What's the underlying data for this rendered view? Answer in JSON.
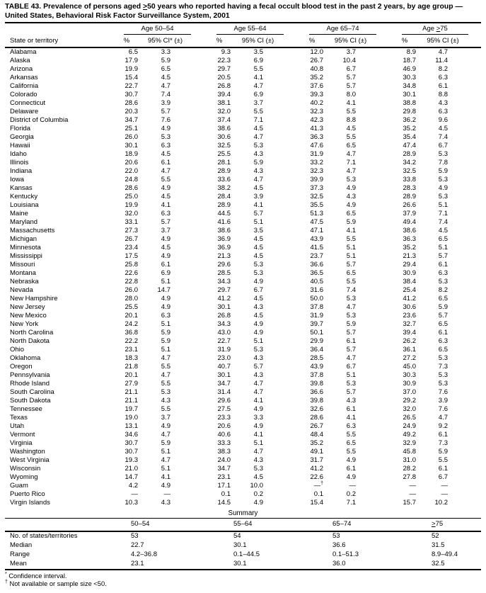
{
  "title": {
    "line1": "TABLE 43. Prevalence of persons aged ≥50 years who reported having a fecal occult blood test in the past 2 years, by age group —",
    "line2": "United States, Behavioral Risk Factor Surveillance System, 2001"
  },
  "table": {
    "state_col_header": "State or territory",
    "groups": [
      {
        "label": "Age 50–54",
        "pct": "%",
        "ci": "95% CI* (±)"
      },
      {
        "label": "Age 55–64",
        "pct": "%",
        "ci": "95% CI (±)"
      },
      {
        "label": "Age 65–74",
        "pct": "%",
        "ci": "95% CI (±)"
      },
      {
        "label": "Age ≥75",
        "pct": "%",
        "ci": "95% CI (±)"
      }
    ],
    "rows": [
      {
        "state": "Alabama",
        "values": [
          "6.5",
          "3.3",
          "9.3",
          "3.5",
          "12.0",
          "3.7",
          "8.9",
          "4.7"
        ]
      },
      {
        "state": "Alaska",
        "values": [
          "17.9",
          "5.9",
          "22.3",
          "6.9",
          "26.7",
          "10.4",
          "18.7",
          "11.4"
        ]
      },
      {
        "state": "Arizona",
        "values": [
          "19.9",
          "6.5",
          "29.7",
          "5.5",
          "40.8",
          "6.7",
          "46.9",
          "8.2"
        ]
      },
      {
        "state": "Arkansas",
        "values": [
          "15.4",
          "4.5",
          "20.5",
          "4.1",
          "35.2",
          "5.7",
          "30.3",
          "6.3"
        ]
      },
      {
        "state": "California",
        "values": [
          "22.7",
          "4.7",
          "26.8",
          "4.7",
          "37.6",
          "5.7",
          "34.8",
          "6.1"
        ]
      },
      {
        "state": "Colorado",
        "values": [
          "30.7",
          "7.4",
          "39.4",
          "6.9",
          "39.3",
          "8.0",
          "30.1",
          "8.8"
        ]
      },
      {
        "state": "Connecticut",
        "values": [
          "28.6",
          "3.9",
          "38.1",
          "3.7",
          "40.2",
          "4.1",
          "38.8",
          "4.3"
        ]
      },
      {
        "state": "Delaware",
        "values": [
          "20.3",
          "5.7",
          "32.0",
          "5.5",
          "32.3",
          "5.5",
          "29.8",
          "6.3"
        ]
      },
      {
        "state": "District of Columbia",
        "values": [
          "34.7",
          "7.6",
          "37.4",
          "7.1",
          "42.3",
          "8.8",
          "36.2",
          "9.6"
        ]
      },
      {
        "state": "Florida",
        "values": [
          "25.1",
          "4.9",
          "38.6",
          "4.5",
          "41.3",
          "4.5",
          "35.2",
          "4.5"
        ]
      },
      {
        "state": "Georgia",
        "values": [
          "26.0",
          "5.3",
          "30.6",
          "4.7",
          "36.3",
          "5.5",
          "35.4",
          "7.4"
        ]
      },
      {
        "state": "Hawaii",
        "values": [
          "30.1",
          "6.3",
          "32.5",
          "5.3",
          "47.6",
          "6.5",
          "47.4",
          "6.7"
        ]
      },
      {
        "state": "Idaho",
        "values": [
          "18.9",
          "4.5",
          "25.5",
          "4.3",
          "31.9",
          "4.7",
          "28.9",
          "5.3"
        ]
      },
      {
        "state": "Illinois",
        "values": [
          "20.6",
          "6.1",
          "28.1",
          "5.9",
          "33.2",
          "7.1",
          "34.2",
          "7.8"
        ]
      },
      {
        "state": "Indiana",
        "values": [
          "22.0",
          "4.7",
          "28.9",
          "4.3",
          "32.3",
          "4.7",
          "32.5",
          "5.9"
        ]
      },
      {
        "state": "Iowa",
        "values": [
          "24.8",
          "5.5",
          "33.6",
          "4.7",
          "39.9",
          "5.3",
          "33.8",
          "5.3"
        ]
      },
      {
        "state": "Kansas",
        "values": [
          "28.6",
          "4.9",
          "38.2",
          "4.5",
          "37.3",
          "4.9",
          "28.3",
          "4.9"
        ]
      },
      {
        "state": "Kentucky",
        "values": [
          "25.0",
          "4.5",
          "28.4",
          "3.9",
          "32.5",
          "4.3",
          "28.9",
          "5.3"
        ]
      },
      {
        "state": "Louisiana",
        "values": [
          "19.9",
          "4.1",
          "28.9",
          "4.1",
          "35.5",
          "4.9",
          "26.6",
          "5.1"
        ]
      },
      {
        "state": "Maine",
        "values": [
          "32.0",
          "6.3",
          "44.5",
          "5.7",
          "51.3",
          "6.5",
          "37.9",
          "7.1"
        ]
      },
      {
        "state": "Maryland",
        "values": [
          "33.1",
          "5.7",
          "41.6",
          "5.1",
          "47.5",
          "5.9",
          "49.4",
          "7.4"
        ]
      },
      {
        "state": "Massachusetts",
        "values": [
          "27.3",
          "3.7",
          "38.6",
          "3.5",
          "47.1",
          "4.1",
          "38.6",
          "4.5"
        ]
      },
      {
        "state": "Michigan",
        "values": [
          "26.7",
          "4.9",
          "36.9",
          "4.5",
          "43.9",
          "5.5",
          "36.3",
          "6.5"
        ]
      },
      {
        "state": "Minnesota",
        "values": [
          "23.4",
          "4.5",
          "36.9",
          "4.5",
          "41.5",
          "5.1",
          "35.2",
          "5.1"
        ]
      },
      {
        "state": "Mississippi",
        "values": [
          "17.5",
          "4.9",
          "21.3",
          "4.5",
          "23.7",
          "5.1",
          "21.3",
          "5.7"
        ]
      },
      {
        "state": "Missouri",
        "values": [
          "25.8",
          "6.1",
          "29.6",
          "5.3",
          "36.6",
          "5.7",
          "29.4",
          "6.1"
        ]
      },
      {
        "state": "Montana",
        "values": [
          "22.6",
          "6.9",
          "28.5",
          "5.3",
          "36.5",
          "6.5",
          "30.9",
          "6.3"
        ]
      },
      {
        "state": "Nebraska",
        "values": [
          "22.8",
          "5.1",
          "34.3",
          "4.9",
          "40.5",
          "5.5",
          "38.4",
          "5.3"
        ]
      },
      {
        "state": "Nevada",
        "values": [
          "26.0",
          "14.7",
          "29.7",
          "6.7",
          "31.6",
          "7.4",
          "25.4",
          "8.2"
        ]
      },
      {
        "state": "New Hampshire",
        "values": [
          "28.0",
          "4.9",
          "41.2",
          "4.5",
          "50.0",
          "5.3",
          "41.2",
          "6.5"
        ]
      },
      {
        "state": "New Jersey",
        "values": [
          "25.5",
          "4.9",
          "30.1",
          "4.3",
          "37.8",
          "4.7",
          "30.6",
          "5.9"
        ]
      },
      {
        "state": "New Mexico",
        "values": [
          "20.1",
          "6.3",
          "26.8",
          "4.5",
          "31.9",
          "5.3",
          "23.6",
          "5.7"
        ]
      },
      {
        "state": "New York",
        "values": [
          "24.2",
          "5.1",
          "34.3",
          "4.9",
          "39.7",
          "5.9",
          "32.7",
          "6.5"
        ]
      },
      {
        "state": "North Carolina",
        "values": [
          "36.8",
          "5.9",
          "43.0",
          "4.9",
          "50.1",
          "5.7",
          "39.4",
          "6.1"
        ]
      },
      {
        "state": "North Dakota",
        "values": [
          "22.2",
          "5.9",
          "22.7",
          "5.1",
          "29.9",
          "6.1",
          "26.2",
          "6.3"
        ]
      },
      {
        "state": "Ohio",
        "values": [
          "23.1",
          "5.1",
          "31.9",
          "5.3",
          "36.4",
          "5.7",
          "36.1",
          "6.5"
        ]
      },
      {
        "state": "Oklahoma",
        "values": [
          "18.3",
          "4.7",
          "23.0",
          "4.3",
          "28.5",
          "4.7",
          "27.2",
          "5.3"
        ]
      },
      {
        "state": "Oregon",
        "values": [
          "21.8",
          "5.5",
          "40.7",
          "5.7",
          "43.9",
          "6.7",
          "45.0",
          "7.3"
        ]
      },
      {
        "state": "Pennsylvania",
        "values": [
          "20.1",
          "4.7",
          "30.1",
          "4.3",
          "37.8",
          "5.1",
          "30.3",
          "5.3"
        ]
      },
      {
        "state": "Rhode Island",
        "values": [
          "27.9",
          "5.5",
          "34.7",
          "4.7",
          "39.8",
          "5.3",
          "30.9",
          "5.3"
        ]
      },
      {
        "state": "South Carolina",
        "values": [
          "21.1",
          "5.3",
          "31.4",
          "4.7",
          "36.6",
          "5.7",
          "37.0",
          "7.6"
        ]
      },
      {
        "state": "South Dakota",
        "values": [
          "21.1",
          "4.3",
          "29.6",
          "4.1",
          "39.8",
          "4.3",
          "29.2",
          "3.9"
        ]
      },
      {
        "state": "Tennessee",
        "values": [
          "19.7",
          "5.5",
          "27.5",
          "4.9",
          "32.6",
          "6.1",
          "32.0",
          "7.6"
        ]
      },
      {
        "state": "Texas",
        "values": [
          "19.0",
          "3.7",
          "23.3",
          "3.3",
          "28.6",
          "4.1",
          "26.5",
          "4.7"
        ]
      },
      {
        "state": "Utah",
        "values": [
          "13.1",
          "4.9",
          "20.6",
          "4.9",
          "26.7",
          "6.3",
          "24.9",
          "9.2"
        ]
      },
      {
        "state": "Vermont",
        "values": [
          "34.6",
          "4.7",
          "40.6",
          "4.1",
          "48.4",
          "5.5",
          "49.2",
          "6.1"
        ]
      },
      {
        "state": "Virginia",
        "values": [
          "30.7",
          "5.9",
          "33.3",
          "5.1",
          "35.2",
          "6.5",
          "32.9",
          "7.3"
        ]
      },
      {
        "state": "Washington",
        "values": [
          "30.7",
          "5.1",
          "38.3",
          "4.7",
          "49.1",
          "5.5",
          "45.8",
          "5.9"
        ]
      },
      {
        "state": "West Virginia",
        "values": [
          "19.3",
          "4.7",
          "24.0",
          "4.3",
          "31.7",
          "4.9",
          "31.0",
          "5.5"
        ]
      },
      {
        "state": "Wisconsin",
        "values": [
          "21.0",
          "5.1",
          "34.7",
          "5.3",
          "41.2",
          "6.1",
          "28.2",
          "6.1"
        ]
      },
      {
        "state": "Wyoming",
        "values": [
          "14.7",
          "4.1",
          "23.1",
          "4.5",
          "22.6",
          "4.9",
          "27.8",
          "6.7"
        ]
      },
      {
        "state": "Guam",
        "values": [
          "4.2",
          "4.9",
          "17.1",
          "10.0",
          "—†",
          "—",
          "—",
          "—"
        ]
      },
      {
        "state": "Puerto Rico",
        "values": [
          "—",
          "—",
          "0.1",
          "0.2",
          "0.1",
          "0.2",
          "—",
          "—"
        ]
      },
      {
        "state": "Virgin Islands",
        "values": [
          "10.3",
          "4.3",
          "14.5",
          "4.9",
          "15.4",
          "7.1",
          "15.7",
          "10.2"
        ]
      }
    ]
  },
  "summary": {
    "heading": "Summary",
    "columns": [
      "50–54",
      "55–64",
      "65–74",
      "≥75"
    ],
    "rows": [
      {
        "label": "No. of states/territories",
        "values": [
          "53",
          "54",
          "53",
          "52"
        ]
      },
      {
        "label": "Median",
        "values": [
          "22.7",
          "30.1",
          "36.6",
          "31.5"
        ]
      },
      {
        "label": "Range",
        "values": [
          "4.2–36.8",
          "0.1–44.5",
          "0.1–51.3",
          "8.9–49.4"
        ]
      },
      {
        "label": "Mean",
        "values": [
          "23.1",
          "30.1",
          "36.0",
          "32.5"
        ]
      }
    ]
  },
  "footnotes": [
    {
      "marker": "*",
      "text": "Confidence interval."
    },
    {
      "marker": "†",
      "text": "Not available or sample size <50."
    }
  ]
}
